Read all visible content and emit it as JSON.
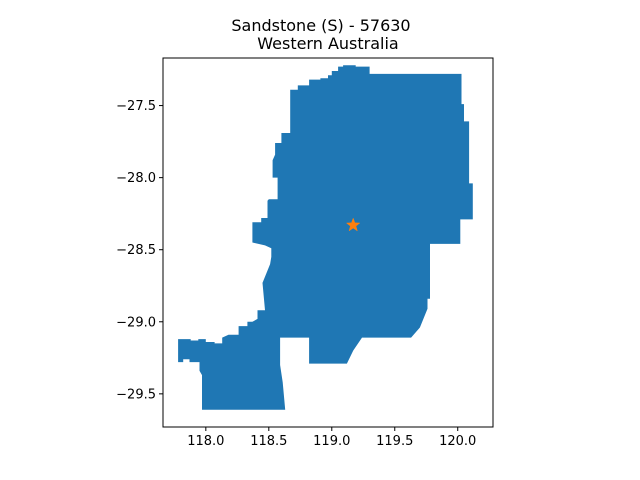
{
  "title": {
    "line1": "Sandstone (S) - 57630",
    "line2": "Western Australia"
  },
  "chart_data": {
    "type": "map",
    "xlim": [
      117.66,
      120.28
    ],
    "ylim": [
      -29.73,
      -27.17
    ],
    "xticks": [
      {
        "value": 118.0,
        "label": "118.0"
      },
      {
        "value": 118.5,
        "label": "118.5"
      },
      {
        "value": 119.0,
        "label": "119.0"
      },
      {
        "value": 119.5,
        "label": "119.5"
      },
      {
        "value": 120.0,
        "label": "120.0"
      }
    ],
    "yticks": [
      {
        "value": -27.5,
        "label": "−27.5"
      },
      {
        "value": -28.0,
        "label": "−28.0"
      },
      {
        "value": -28.5,
        "label": "−28.5"
      },
      {
        "value": -29.0,
        "label": "−29.0"
      },
      {
        "value": -29.5,
        "label": "−29.5"
      }
    ],
    "region": {
      "fill_color": "#1f77b4",
      "polygon": [
        [
          118.73,
          -27.36
        ],
        [
          118.82,
          -27.36
        ],
        [
          118.82,
          -27.32
        ],
        [
          118.91,
          -27.32
        ],
        [
          118.91,
          -27.31
        ],
        [
          118.97,
          -27.31
        ],
        [
          118.97,
          -27.29
        ],
        [
          119.0,
          -27.29
        ],
        [
          119.0,
          -27.26
        ],
        [
          119.05,
          -27.26
        ],
        [
          119.05,
          -27.23
        ],
        [
          119.09,
          -27.23
        ],
        [
          119.09,
          -27.22
        ],
        [
          119.19,
          -27.22
        ],
        [
          119.19,
          -27.23
        ],
        [
          119.3,
          -27.23
        ],
        [
          119.3,
          -27.28
        ],
        [
          120.03,
          -27.28
        ],
        [
          120.03,
          -27.49
        ],
        [
          120.05,
          -27.49
        ],
        [
          120.05,
          -27.61
        ],
        [
          120.09,
          -27.61
        ],
        [
          120.09,
          -28.04
        ],
        [
          120.12,
          -28.04
        ],
        [
          120.12,
          -28.29
        ],
        [
          120.02,
          -28.29
        ],
        [
          120.02,
          -28.46
        ],
        [
          119.65,
          -28.46
        ],
        [
          119.65,
          -28.46
        ],
        [
          119.78,
          -28.46
        ],
        [
          119.78,
          -28.84
        ],
        [
          119.76,
          -28.84
        ],
        [
          119.76,
          -28.91
        ],
        [
          119.7,
          -29.04
        ],
        [
          119.63,
          -29.11
        ],
        [
          119.37,
          -29.11
        ],
        [
          119.24,
          -29.11
        ],
        [
          119.17,
          -29.2
        ],
        [
          119.12,
          -29.29
        ],
        [
          118.87,
          -29.29
        ],
        [
          118.82,
          -29.29
        ],
        [
          118.82,
          -29.11
        ],
        [
          118.73,
          -29.11
        ],
        [
          118.59,
          -29.11
        ],
        [
          118.59,
          -29.3
        ],
        [
          118.61,
          -29.42
        ],
        [
          118.63,
          -29.61
        ],
        [
          118.44,
          -29.61
        ],
        [
          118.04,
          -29.61
        ],
        [
          117.97,
          -29.61
        ],
        [
          117.97,
          -29.37
        ],
        [
          117.95,
          -29.34
        ],
        [
          117.95,
          -29.28
        ],
        [
          117.87,
          -29.28
        ],
        [
          117.87,
          -29.26
        ],
        [
          117.82,
          -29.26
        ],
        [
          117.82,
          -29.28
        ],
        [
          117.78,
          -29.28
        ],
        [
          117.78,
          -29.12
        ],
        [
          117.88,
          -29.12
        ],
        [
          117.88,
          -29.13
        ],
        [
          117.94,
          -29.13
        ],
        [
          117.94,
          -29.12
        ],
        [
          118.0,
          -29.12
        ],
        [
          118.0,
          -29.14
        ],
        [
          118.07,
          -29.14
        ],
        [
          118.07,
          -29.15
        ],
        [
          118.13,
          -29.15
        ],
        [
          118.13,
          -29.11
        ],
        [
          118.18,
          -29.09
        ],
        [
          118.26,
          -29.09
        ],
        [
          118.26,
          -29.03
        ],
        [
          118.33,
          -29.03
        ],
        [
          118.33,
          -29.0
        ],
        [
          118.37,
          -29.0
        ],
        [
          118.41,
          -28.98
        ],
        [
          118.41,
          -28.92
        ],
        [
          118.47,
          -28.92
        ],
        [
          118.45,
          -28.73
        ],
        [
          118.51,
          -28.6
        ],
        [
          118.52,
          -28.55
        ],
        [
          118.52,
          -28.49
        ],
        [
          118.47,
          -28.47
        ],
        [
          118.37,
          -28.45
        ],
        [
          118.37,
          -28.31
        ],
        [
          118.44,
          -28.31
        ],
        [
          118.44,
          -28.28
        ],
        [
          118.49,
          -28.28
        ],
        [
          118.49,
          -28.16
        ],
        [
          118.5,
          -28.15
        ],
        [
          118.57,
          -28.15
        ],
        [
          118.57,
          -28.0
        ],
        [
          118.53,
          -28.0
        ],
        [
          118.53,
          -27.88
        ],
        [
          118.55,
          -27.84
        ],
        [
          118.55,
          -27.76
        ],
        [
          118.6,
          -27.76
        ],
        [
          118.6,
          -27.69
        ],
        [
          118.67,
          -27.69
        ],
        [
          118.67,
          -27.39
        ],
        [
          118.73,
          -27.39
        ],
        [
          118.73,
          -27.36
        ]
      ]
    },
    "marker": {
      "type": "star",
      "color": "#ff7f0e",
      "lon": 119.17,
      "lat": -28.33
    }
  }
}
